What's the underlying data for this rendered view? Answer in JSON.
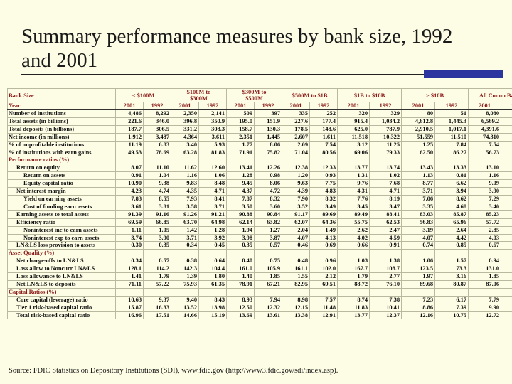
{
  "title": "Summary performance measures by bank size, 1992 and 2001",
  "header": {
    "bank_size_label": "Bank Size",
    "year_label": "Year",
    "groups": [
      {
        "label_line1": "< $100M",
        "label_line2": ""
      },
      {
        "label_line1": "$100M to",
        "label_line2": "$300M"
      },
      {
        "label_line1": "$300M to",
        "label_line2": "$500M"
      },
      {
        "label_line1": "$500M to $1B",
        "label_line2": ""
      },
      {
        "label_line1": "$1B to $10B",
        "label_line2": ""
      },
      {
        "label_line1": "> $10B",
        "label_line2": ""
      },
      {
        "label_line1": "All Comm Banks",
        "label_line2": ""
      }
    ],
    "years": [
      "2001",
      "1992",
      "2001",
      "1992",
      "2001",
      "1992",
      "2001",
      "1992",
      "2001",
      "1992",
      "2001",
      "1992",
      "2001",
      "1992"
    ]
  },
  "rows": [
    {
      "label": "Number of institutions",
      "indent": 0,
      "section": false,
      "values": [
        "4,486",
        "8,292",
        "2,350",
        "2,141",
        "509",
        "397",
        "335",
        "252",
        "320",
        "329",
        "80",
        "51",
        "8,080",
        "11,462"
      ]
    },
    {
      "label": "Total assets (in billions)",
      "indent": 0,
      "section": false,
      "values": [
        "221.6",
        "346.0",
        "396.8",
        "350.9",
        "195.0",
        "151.9",
        "227.6",
        "177.4",
        "915.4",
        "1,034.2",
        "4,612.8",
        "1,445.3",
        "6,569.2",
        "3,505.7"
      ]
    },
    {
      "label": "Total deposits (in billions)",
      "indent": 0,
      "section": false,
      "values": [
        "187.7",
        "306.5",
        "331.2",
        "308.3",
        "158.7",
        "130.3",
        "178.5",
        "148.6",
        "625.0",
        "787.9",
        "2,910.5",
        "1,017.1",
        "4,391.6",
        "2,698.7"
      ]
    },
    {
      "label": "Net income (in millions)",
      "indent": 0,
      "section": false,
      "values": [
        "1,912",
        "3,487",
        "4,364",
        "3,611",
        "2,351",
        "1,445",
        "2,607",
        "1,611",
        "11,518",
        "10,322",
        "51,559",
        "11,510",
        "74,310",
        "31,987"
      ]
    },
    {
      "label": "% of unprofitable institutions",
      "indent": 0,
      "section": false,
      "values": [
        "11.19",
        "6.83",
        "3.40",
        "5.93",
        "1.77",
        "8.06",
        "2.09",
        "7.54",
        "3.12",
        "11.25",
        "1.25",
        "7.84",
        "7.54",
        "6.85"
      ]
    },
    {
      "label": "% of institutions with earn gains",
      "indent": 0,
      "section": false,
      "values": [
        "49.53",
        "78.69",
        "63.28",
        "81.83",
        "71.91",
        "75.82",
        "71.04",
        "80.56",
        "69.06",
        "79.33",
        "62.50",
        "86.27",
        "56.73",
        "79.27"
      ]
    },
    {
      "label": "Performance ratios (%)",
      "indent": 0,
      "section": true,
      "values": [
        "",
        "",
        "",
        "",
        "",
        "",
        "",
        "",
        "",
        "",
        "",
        "",
        "",
        ""
      ]
    },
    {
      "label": "Return on equity",
      "indent": 1,
      "section": false,
      "values": [
        "8.07",
        "11.10",
        "11.62",
        "12.60",
        "13.41",
        "12.26",
        "12.38",
        "12.33",
        "13.77",
        "13.74",
        "13.43",
        "13.33",
        "13.10",
        "12.98"
      ]
    },
    {
      "label": "Return on assets",
      "indent": 2,
      "section": false,
      "values": [
        "0.91",
        "1.04",
        "1.16",
        "1.06",
        "1.28",
        "0.98",
        "1.20",
        "0.93",
        "1.31",
        "1.02",
        "1.13",
        "0.81",
        "1.16",
        "0.93"
      ]
    },
    {
      "label": "Equity capital ratio",
      "indent": 2,
      "section": false,
      "values": [
        "10.90",
        "9.38",
        "9.83",
        "8.48",
        "9.45",
        "8.06",
        "9.63",
        "7.75",
        "9.76",
        "7.68",
        "8.77",
        "6.62",
        "9.09",
        "7.51"
      ]
    },
    {
      "label": "Net interest margin",
      "indent": 1,
      "section": false,
      "values": [
        "4.23",
        "4.74",
        "4.35",
        "4.71",
        "4.37",
        "4.72",
        "4.39",
        "4.83",
        "4.31",
        "4.71",
        "3.71",
        "3.94",
        "3.90",
        "4.41"
      ]
    },
    {
      "label": "Yield on earning assets",
      "indent": 2,
      "section": false,
      "values": [
        "7.83",
        "8.55",
        "7.93",
        "8.41",
        "7.87",
        "8.32",
        "7.90",
        "8.32",
        "7.76",
        "8.19",
        "7.06",
        "8.62",
        "7.29",
        "8.43"
      ]
    },
    {
      "label": "Cost of funding earn assets",
      "indent": 2,
      "section": false,
      "values": [
        "3.61",
        "3.81",
        "3.58",
        "3.71",
        "3.50",
        "3.60",
        "3.52",
        "3.49",
        "3.45",
        "3.47",
        "3.35",
        "4.68",
        "3.40",
        "4.02"
      ]
    },
    {
      "label": "Earning assets to total assets",
      "indent": 1,
      "section": false,
      "values": [
        "91.39",
        "91.16",
        "91.26",
        "91.21",
        "90.88",
        "90.84",
        "91.17",
        "89.69",
        "89.49",
        "88.41",
        "83.03",
        "85.87",
        "85.23",
        "88.08"
      ]
    },
    {
      "label": "Efficiency ratio",
      "indent": 1,
      "section": false,
      "values": [
        "69.59",
        "66.85",
        "63.70",
        "64.98",
        "62.14",
        "63.82",
        "62.07",
        "64.36",
        "55.75",
        "62.53",
        "56.83",
        "65.96",
        "57.72",
        "64.68"
      ]
    },
    {
      "label": "Noninterest inc to earn assets",
      "indent": 2,
      "section": false,
      "values": [
        "1.11",
        "1.05",
        "1.42",
        "1.28",
        "1.94",
        "1.27",
        "2.04",
        "1.49",
        "2.62",
        "2.47",
        "3.19",
        "2.64",
        "2.85",
        "2.17"
      ]
    },
    {
      "label": "Noninterest exp to earn assets",
      "indent": 2,
      "section": false,
      "values": [
        "3.74",
        "3.90",
        "3.71",
        "3.92",
        "3.98",
        "3.87",
        "4.07",
        "4.13",
        "4.02",
        "4.59",
        "4.07",
        "4.42",
        "4.03",
        "4.33"
      ]
    },
    {
      "label": "LN&LS loss provision to assets",
      "indent": 1,
      "section": false,
      "values": [
        "0.30",
        "0.35",
        "0.34",
        "0.45",
        "0.35",
        "0.57",
        "0.46",
        "0.69",
        "0.66",
        "0.91",
        "0.74",
        "0.85",
        "0.67",
        "0.76"
      ]
    },
    {
      "label": "Asset Quality (%)",
      "indent": 0,
      "section": true,
      "values": [
        "",
        "",
        "",
        "",
        "",
        "",
        "",
        "",
        "",
        "",
        "",
        "",
        "",
        ""
      ]
    },
    {
      "label": "Net charge-offs to LN&LS",
      "indent": 1,
      "section": false,
      "values": [
        "0.34",
        "0.57",
        "0.38",
        "0.64",
        "0.40",
        "0.75",
        "0.48",
        "0.96",
        "1.03",
        "1.38",
        "1.06",
        "1.57",
        "0.94",
        "1.27"
      ]
    },
    {
      "label": "Loss allow to Noncurr LN&LS",
      "indent": 1,
      "section": false,
      "values": [
        "128.1",
        "114.2",
        "142.3",
        "104.4",
        "161.0",
        "105.9",
        "161.1",
        "102.0",
        "167.7",
        "108.7",
        "123.5",
        "73.3",
        "131.0",
        "87.6"
      ]
    },
    {
      "label": "Loss allowance to LN&LS",
      "indent": 1,
      "section": false,
      "values": [
        "1.41",
        "1.79",
        "1.39",
        "1.80",
        "1.40",
        "1.85",
        "1.55",
        "2.12",
        "1.79",
        "2.77",
        "1.97",
        "3.16",
        "1.85",
        "2.68"
      ]
    },
    {
      "label": "Net LN&LS to deposits",
      "indent": 1,
      "section": false,
      "values": [
        "71.11",
        "57.22",
        "75.93",
        "61.35",
        "78.91",
        "67.21",
        "82.95",
        "69.51",
        "88.72",
        "76.10",
        "89.68",
        "80.87",
        "87.06",
        "73.28"
      ]
    },
    {
      "label": "Capital Ratios (%)",
      "indent": 0,
      "section": true,
      "values": [
        "",
        "",
        "",
        "",
        "",
        "",
        "",
        "",
        "",
        "",
        "",
        "",
        "",
        ""
      ]
    },
    {
      "label": "Core capital (leverage) ratio",
      "indent": 1,
      "section": false,
      "values": [
        "10.63",
        "9.37",
        "9.40",
        "8.43",
        "8.93",
        "7.94",
        "8.98",
        "7.57",
        "8.74",
        "7.38",
        "7.23",
        "6.17",
        "7.79",
        "7.21"
      ]
    },
    {
      "label": "Tier 1 risk-based capital ratio",
      "indent": 1,
      "section": false,
      "values": [
        "15.87",
        "16.33",
        "13.52",
        "13.98",
        "12.50",
        "12.32",
        "12.15",
        "11.48",
        "11.83",
        "10.41",
        "8.86",
        "7.39",
        "9.90",
        "9.84"
      ]
    },
    {
      "label": "Total risk-based capital ratio",
      "indent": 1,
      "section": false,
      "values": [
        "16.96",
        "17.51",
        "14.66",
        "15.19",
        "13.69",
        "13.61",
        "13.38",
        "12.91",
        "13.77",
        "12.37",
        "12.16",
        "10.75",
        "12.72",
        "12.30"
      ]
    }
  ],
  "source": "Source:  FDIC Statistics on Depository Institutions (SDI), www.fdic.gov (http://www3.fdic.gov/sdi/index.asp).",
  "colors": {
    "background": "#fdfce4",
    "header_text": "#8b1a1a",
    "accent_block": "#2c34a0"
  }
}
